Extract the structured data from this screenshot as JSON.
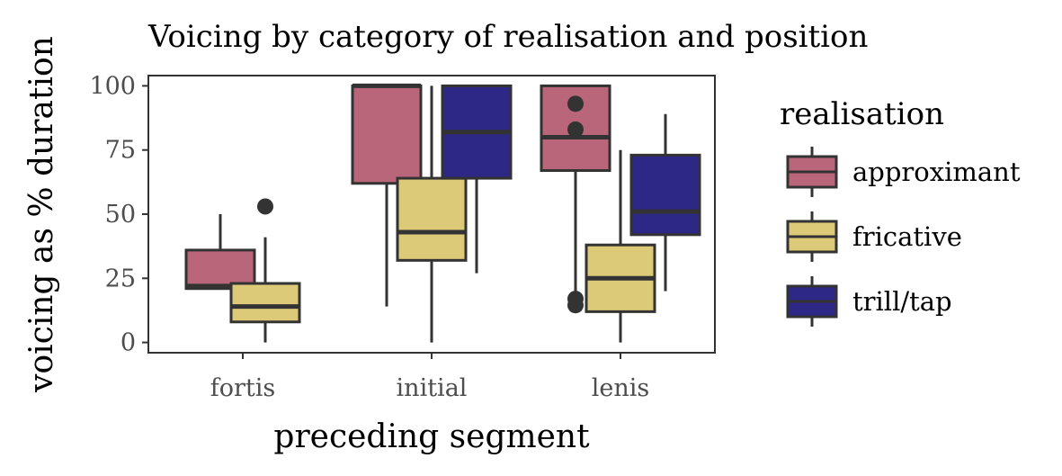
{
  "chart_data": {
    "type": "boxplot",
    "title": "Voicing by category of realisation and position",
    "xlabel": "preceding segment",
    "ylabel": "voicing as % duration",
    "ylim": [
      -4,
      104
    ],
    "yticks": [
      0,
      25,
      50,
      75,
      100
    ],
    "categories": [
      "fortis",
      "initial",
      "lenis"
    ],
    "grid": false,
    "legend": {
      "title": "realisation",
      "placement": "right"
    },
    "series": [
      {
        "name": "approximant",
        "color": "#b9667a",
        "boxes": [
          {
            "category": "fortis",
            "whisker_low": 21,
            "q1": 21,
            "median": 22,
            "q3": 36,
            "whisker_high": 50,
            "outliers": []
          },
          {
            "category": "initial",
            "whisker_low": 14,
            "q1": 62,
            "median": 100,
            "q3": 100,
            "whisker_high": 100,
            "outliers": []
          },
          {
            "category": "lenis",
            "whisker_low": 19,
            "q1": 67,
            "median": 80,
            "q3": 100,
            "whisker_high": 100,
            "outliers": [
              14.5,
              17,
              83,
              93
            ]
          }
        ]
      },
      {
        "name": "fricative",
        "color": "#dcca78",
        "boxes": [
          {
            "category": "fortis",
            "whisker_low": 0,
            "q1": 8,
            "median": 14,
            "q3": 23,
            "whisker_high": 41,
            "outliers": [
              53
            ]
          },
          {
            "category": "initial",
            "whisker_low": 0,
            "q1": 32,
            "median": 43,
            "q3": 64,
            "whisker_high": 100,
            "outliers": []
          },
          {
            "category": "lenis",
            "whisker_low": 0,
            "q1": 12,
            "median": 25,
            "q3": 38,
            "whisker_high": 75,
            "outliers": []
          }
        ]
      },
      {
        "name": "trill/tap",
        "color": "#2d2786",
        "boxes": [
          {
            "category": "initial",
            "whisker_low": 27,
            "q1": 64,
            "median": 82,
            "q3": 100,
            "whisker_high": 100,
            "outliers": []
          },
          {
            "category": "lenis",
            "whisker_low": 20,
            "q1": 42,
            "median": 51,
            "q3": 73,
            "whisker_high": 89,
            "outliers": []
          }
        ]
      }
    ]
  }
}
